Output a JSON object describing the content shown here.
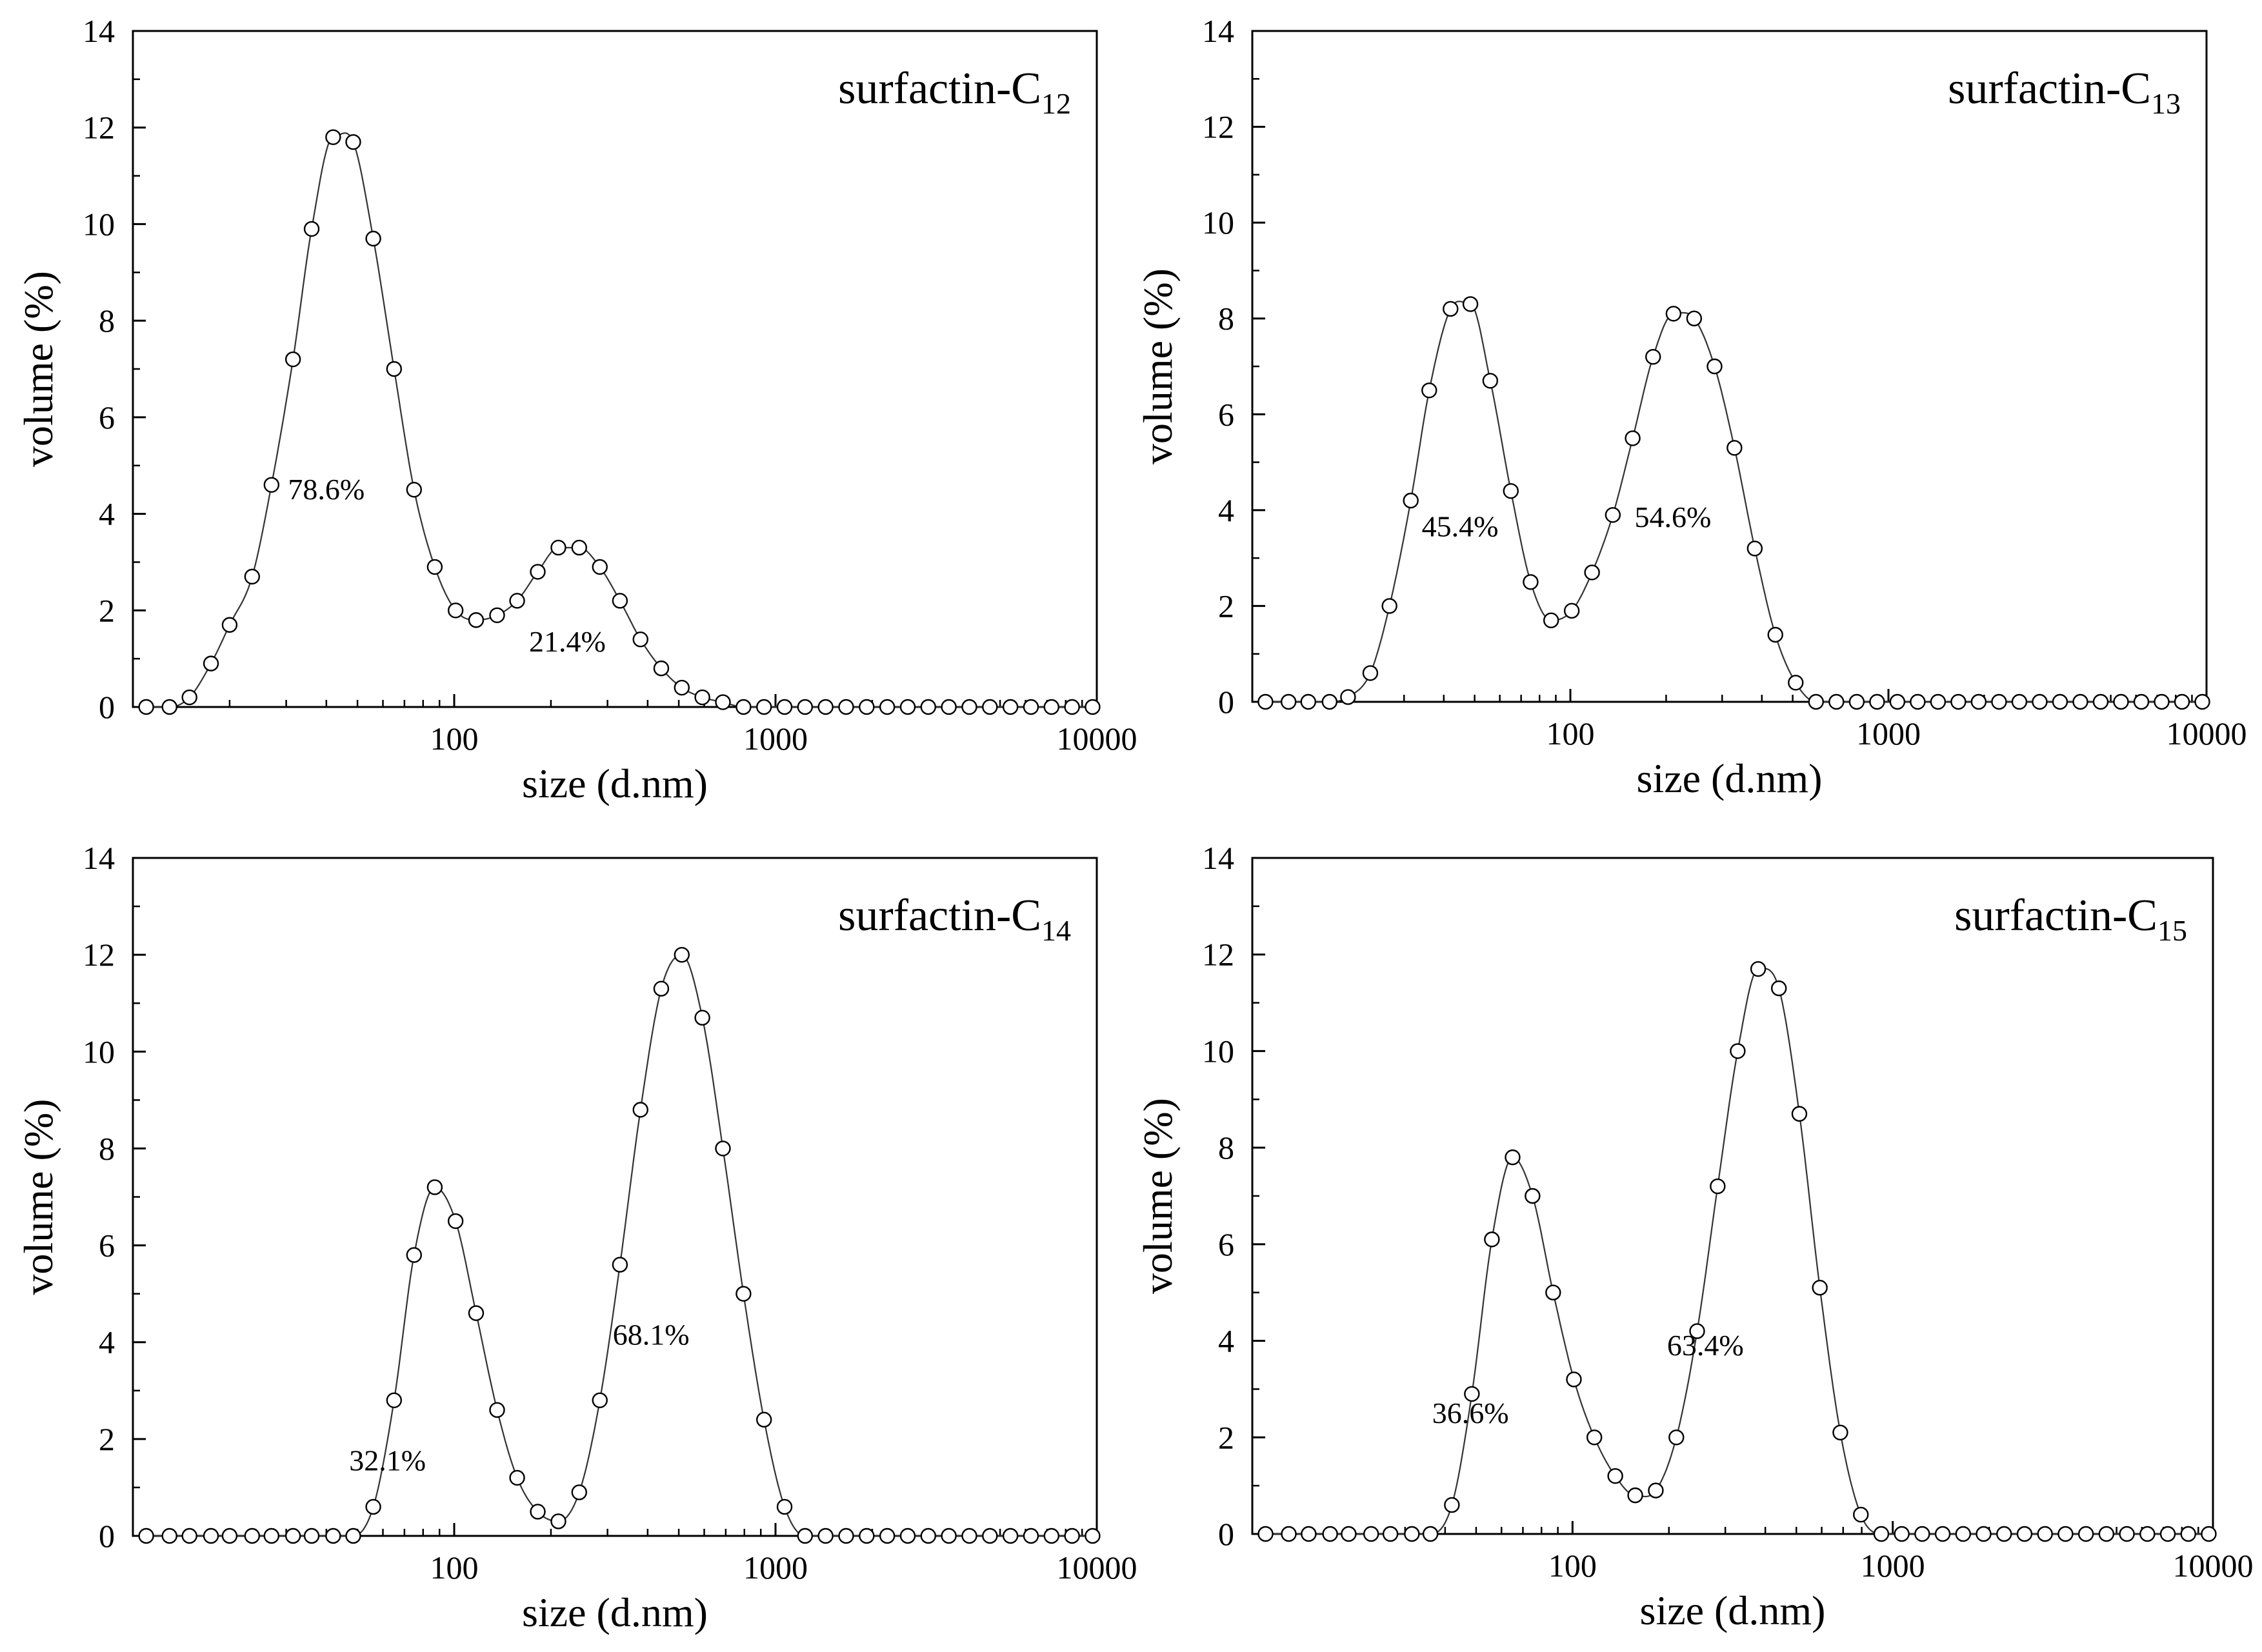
{
  "chart_data": [
    {
      "type": "scatter",
      "title": "surfactin-C",
      "title_subscript": "12",
      "xlabel": "size (d.nm)",
      "ylabel": "volume (%)",
      "xscale": "log",
      "xlim": [
        10,
        10000
      ],
      "ylim": [
        0,
        14
      ],
      "xticks": [
        100,
        1000,
        10000
      ],
      "yticks": [
        0,
        2,
        4,
        6,
        8,
        10,
        12,
        14
      ],
      "grid": false,
      "series": [
        {
          "name": "surfactin-C12",
          "x": [
            11,
            13,
            15,
            17.5,
            20,
            23.5,
            27,
            31.5,
            36,
            42,
            48.5,
            56,
            65,
            75,
            87,
            101,
            117,
            136,
            157,
            182,
            211,
            245,
            284,
            328,
            380,
            441,
            511,
            592,
            686,
            795,
            921,
            1067,
            1236,
            1432,
            1659,
            1922,
            2227,
            2580,
            2989,
            3463,
            4012,
            4648,
            5385,
            6239,
            7228,
            8374,
            9701
          ],
          "y": [
            0,
            0,
            0.2,
            0.9,
            1.7,
            2.7,
            4.6,
            7.2,
            9.9,
            11.8,
            11.7,
            9.7,
            7.0,
            4.5,
            2.9,
            2.0,
            1.8,
            1.9,
            2.2,
            2.8,
            3.3,
            3.3,
            2.9,
            2.2,
            1.4,
            0.8,
            0.4,
            0.2,
            0.1,
            0,
            0,
            0,
            0,
            0,
            0,
            0,
            0,
            0,
            0,
            0,
            0,
            0,
            0,
            0,
            0,
            0,
            0
          ]
        }
      ],
      "annotations": [
        {
          "text": "78.6%",
          "x": 40,
          "y": 4.3
        },
        {
          "text": "21.4%",
          "x": 225,
          "y": 1.15
        }
      ]
    },
    {
      "type": "scatter",
      "title": "surfactin-C",
      "title_subscript": "13",
      "xlabel": "size (d.nm)",
      "ylabel": "volume (%)",
      "xscale": "log",
      "xlim": [
        10,
        10000
      ],
      "ylim": [
        0,
        14
      ],
      "xticks": [
        100,
        1000,
        10000
      ],
      "yticks": [
        0,
        2,
        4,
        6,
        8,
        10,
        12,
        14
      ],
      "grid": false,
      "series": [
        {
          "name": "surfactin-C13",
          "x": [
            11,
            13,
            15,
            17.5,
            20,
            23.5,
            27,
            31.5,
            36,
            42,
            48.5,
            56,
            65,
            75,
            87,
            101,
            117,
            136,
            157,
            182,
            211,
            245,
            284,
            328,
            380,
            441,
            511,
            592,
            686,
            795,
            921,
            1067,
            1236,
            1432,
            1659,
            1922,
            2227,
            2580,
            2989,
            3463,
            4012,
            4648,
            5385,
            6239,
            7228,
            8374,
            9701
          ],
          "y": [
            0,
            0,
            0,
            0,
            0.1,
            0.6,
            2.0,
            4.2,
            6.5,
            8.2,
            8.3,
            6.7,
            4.4,
            2.5,
            1.7,
            1.9,
            2.7,
            3.9,
            5.5,
            7.2,
            8.1,
            8.0,
            7.0,
            5.3,
            3.2,
            1.4,
            0.4,
            0,
            0,
            0,
            0,
            0,
            0,
            0,
            0,
            0,
            0,
            0,
            0,
            0,
            0,
            0,
            0,
            0,
            0,
            0,
            0
          ]
        }
      ],
      "annotations": [
        {
          "text": "45.4%",
          "x": 45,
          "y": 3.45
        },
        {
          "text": "54.6%",
          "x": 210,
          "y": 3.65
        }
      ]
    },
    {
      "type": "scatter",
      "title": "surfactin-C",
      "title_subscript": "14",
      "xlabel": "size (d.nm)",
      "ylabel": "volume (%)",
      "xscale": "log",
      "xlim": [
        10,
        10000
      ],
      "ylim": [
        0,
        14
      ],
      "xticks": [
        100,
        1000,
        10000
      ],
      "yticks": [
        0,
        2,
        4,
        6,
        8,
        10,
        12,
        14
      ],
      "grid": false,
      "series": [
        {
          "name": "surfactin-C14",
          "x": [
            11,
            13,
            15,
            17.5,
            20,
            23.5,
            27,
            31.5,
            36,
            42,
            48.5,
            56,
            65,
            75,
            87,
            101,
            117,
            136,
            157,
            182,
            211,
            245,
            284,
            328,
            380,
            441,
            511,
            592,
            686,
            795,
            921,
            1067,
            1236,
            1432,
            1659,
            1922,
            2227,
            2580,
            2989,
            3463,
            4012,
            4648,
            5385,
            6239,
            7228,
            8374,
            9701
          ],
          "y": [
            0,
            0,
            0,
            0,
            0,
            0,
            0,
            0,
            0,
            0,
            0,
            0.6,
            2.8,
            5.8,
            7.2,
            6.5,
            4.6,
            2.6,
            1.2,
            0.5,
            0.3,
            0.9,
            2.8,
            5.6,
            8.8,
            11.3,
            12.0,
            10.7,
            8.0,
            5.0,
            2.4,
            0.6,
            0,
            0,
            0,
            0,
            0,
            0,
            0,
            0,
            0,
            0,
            0,
            0,
            0,
            0,
            0
          ]
        }
      ],
      "annotations": [
        {
          "text": "32.1%",
          "x": 62,
          "y": 1.35
        },
        {
          "text": "68.1%",
          "x": 410,
          "y": 3.95
        }
      ]
    },
    {
      "type": "scatter",
      "title": "surfactin-C",
      "title_subscript": "15",
      "xlabel": "size (d.nm)",
      "ylabel": "volume (%)",
      "xscale": "log",
      "xlim": [
        10,
        10000
      ],
      "ylim": [
        0,
        14
      ],
      "xticks": [
        100,
        1000,
        10000
      ],
      "yticks": [
        0,
        2,
        4,
        6,
        8,
        10,
        12,
        14
      ],
      "grid": false,
      "series": [
        {
          "name": "surfactin-C15",
          "x": [
            11,
            13,
            15,
            17.5,
            20,
            23.5,
            27,
            31.5,
            36,
            42,
            48.5,
            56,
            65,
            75,
            87,
            101,
            117,
            136,
            157,
            182,
            211,
            245,
            284,
            328,
            380,
            441,
            511,
            592,
            686,
            795,
            921,
            1067,
            1236,
            1432,
            1659,
            1922,
            2227,
            2580,
            2989,
            3463,
            4012,
            4648,
            5385,
            6239,
            7228,
            8374,
            9701
          ],
          "y": [
            0,
            0,
            0,
            0,
            0,
            0,
            0,
            0,
            0,
            0.6,
            2.9,
            6.1,
            7.8,
            7.0,
            5.0,
            3.2,
            2.0,
            1.2,
            0.8,
            0.9,
            2.0,
            4.2,
            7.2,
            10.0,
            11.7,
            11.3,
            8.7,
            5.1,
            2.1,
            0.4,
            0,
            0,
            0,
            0,
            0,
            0,
            0,
            0,
            0,
            0,
            0,
            0,
            0,
            0,
            0,
            0,
            0
          ]
        }
      ],
      "annotations": [
        {
          "text": "36.6%",
          "x": 48,
          "y": 2.3
        },
        {
          "text": "63.4%",
          "x": 260,
          "y": 3.7
        }
      ]
    }
  ]
}
